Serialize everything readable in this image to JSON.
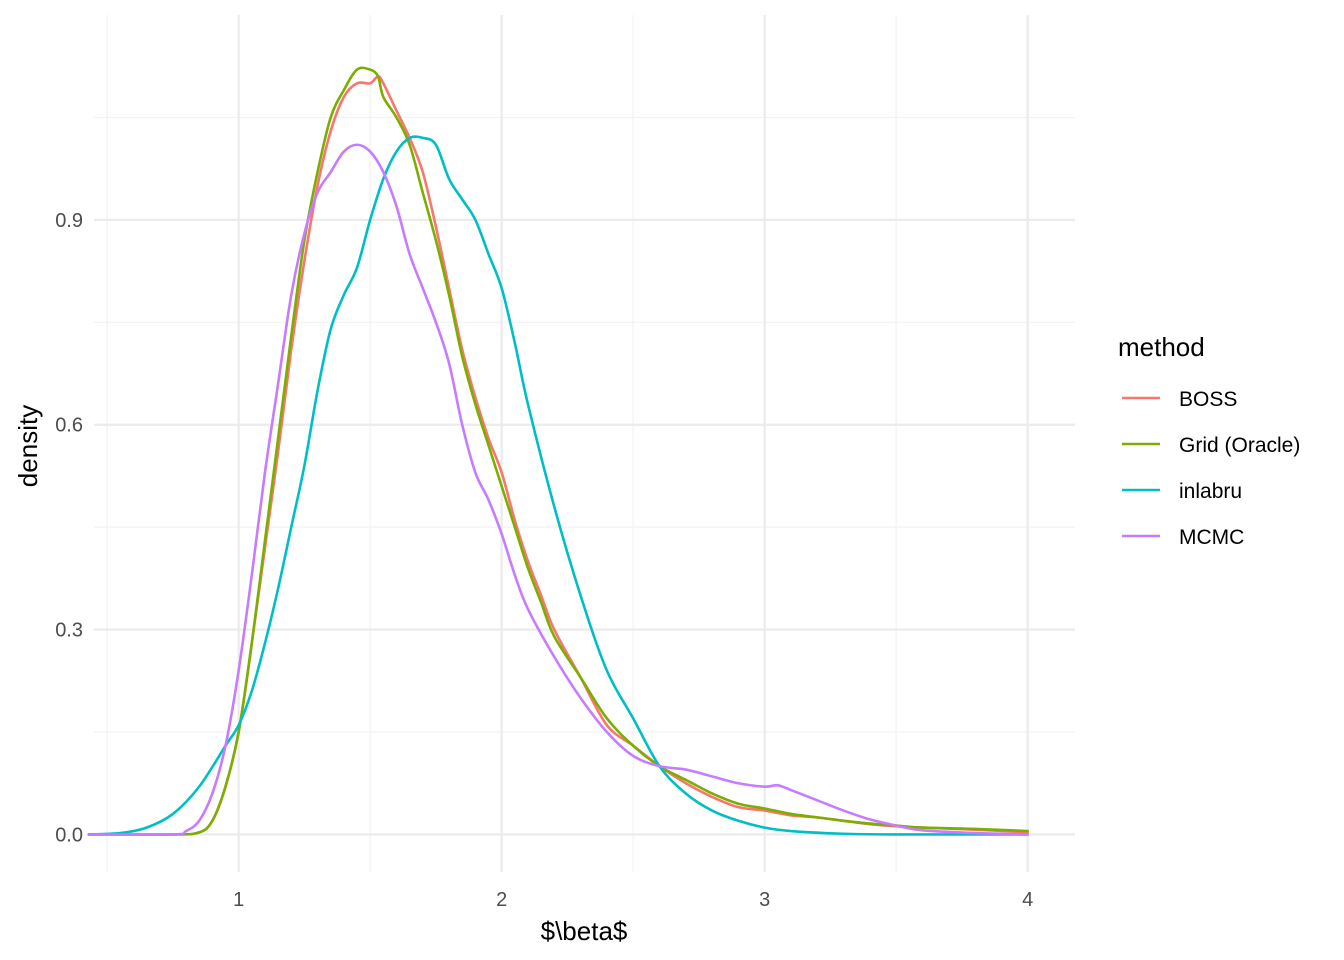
{
  "chart_data": {
    "type": "line",
    "title": "",
    "xlabel": "$\\beta$",
    "ylabel": "density",
    "xlim": [
      0.45,
      4.18
    ],
    "ylim": [
      -0.055,
      1.2
    ],
    "x_ticks": [
      1,
      2,
      3,
      4
    ],
    "x_tick_labels": [
      "1",
      "2",
      "3",
      "4"
    ],
    "x_minor_ticks": [
      0.5,
      1.5,
      2.5,
      3.5
    ],
    "y_ticks": [
      0.0,
      0.3,
      0.6,
      0.9
    ],
    "y_tick_labels": [
      "0.0",
      "0.3",
      "0.6",
      "0.9"
    ],
    "y_minor_ticks": [
      0.15,
      0.45,
      0.75,
      1.05
    ],
    "grid": true,
    "legend": {
      "title": "method",
      "position": "right"
    },
    "series": [
      {
        "name": "BOSS",
        "color": "#F8766D",
        "x": [
          0.43,
          0.75,
          0.85,
          0.9,
          0.95,
          1.0,
          1.05,
          1.1,
          1.15,
          1.2,
          1.25,
          1.3,
          1.35,
          1.4,
          1.45,
          1.5,
          1.53,
          1.55,
          1.6,
          1.65,
          1.7,
          1.75,
          1.8,
          1.85,
          1.9,
          1.95,
          2.0,
          2.05,
          2.1,
          2.15,
          2.2,
          2.3,
          2.4,
          2.5,
          2.6,
          2.7,
          2.8,
          2.9,
          3.0,
          3.1,
          3.2,
          3.3,
          3.4,
          3.5,
          3.6,
          3.8,
          4.0
        ],
        "y": [
          0.0,
          0.0,
          0.003,
          0.02,
          0.07,
          0.15,
          0.28,
          0.42,
          0.56,
          0.71,
          0.84,
          0.95,
          1.03,
          1.08,
          1.1,
          1.1,
          1.11,
          1.1,
          1.06,
          1.02,
          0.97,
          0.89,
          0.8,
          0.71,
          0.64,
          0.58,
          0.53,
          0.46,
          0.4,
          0.35,
          0.3,
          0.23,
          0.16,
          0.13,
          0.1,
          0.075,
          0.055,
          0.04,
          0.035,
          0.028,
          0.025,
          0.02,
          0.015,
          0.012,
          0.01,
          0.007,
          0.003
        ]
      },
      {
        "name": "Grid (Oracle)",
        "color": "#7CAE00",
        "x": [
          0.43,
          0.75,
          0.85,
          0.9,
          0.95,
          1.0,
          1.05,
          1.1,
          1.15,
          1.2,
          1.25,
          1.3,
          1.35,
          1.4,
          1.45,
          1.5,
          1.53,
          1.55,
          1.6,
          1.65,
          1.7,
          1.75,
          1.8,
          1.85,
          1.9,
          1.95,
          2.0,
          2.05,
          2.1,
          2.15,
          2.2,
          2.3,
          2.4,
          2.5,
          2.6,
          2.7,
          2.8,
          2.9,
          3.0,
          3.1,
          3.2,
          3.3,
          3.4,
          3.5,
          3.6,
          3.8,
          4.0
        ],
        "y": [
          0.0,
          0.0,
          0.003,
          0.02,
          0.07,
          0.15,
          0.28,
          0.43,
          0.58,
          0.73,
          0.87,
          0.97,
          1.05,
          1.09,
          1.12,
          1.12,
          1.11,
          1.08,
          1.05,
          1.01,
          0.94,
          0.87,
          0.79,
          0.7,
          0.63,
          0.57,
          0.51,
          0.45,
          0.39,
          0.34,
          0.29,
          0.23,
          0.17,
          0.13,
          0.1,
          0.08,
          0.06,
          0.045,
          0.038,
          0.03,
          0.025,
          0.02,
          0.016,
          0.013,
          0.01,
          0.008,
          0.005
        ]
      },
      {
        "name": "inlabru",
        "color": "#00BFC4",
        "x": [
          0.43,
          0.55,
          0.65,
          0.75,
          0.85,
          0.95,
          1.0,
          1.05,
          1.1,
          1.15,
          1.2,
          1.25,
          1.3,
          1.35,
          1.4,
          1.45,
          1.5,
          1.55,
          1.6,
          1.65,
          1.7,
          1.75,
          1.8,
          1.85,
          1.9,
          1.95,
          2.0,
          2.05,
          2.1,
          2.2,
          2.3,
          2.4,
          2.5,
          2.6,
          2.7,
          2.8,
          2.9,
          3.0,
          3.1,
          3.3,
          3.5,
          3.8,
          4.0
        ],
        "y": [
          0.0,
          0.002,
          0.01,
          0.03,
          0.07,
          0.13,
          0.16,
          0.21,
          0.28,
          0.36,
          0.45,
          0.54,
          0.65,
          0.74,
          0.79,
          0.83,
          0.9,
          0.96,
          1.0,
          1.02,
          1.02,
          1.01,
          0.96,
          0.93,
          0.9,
          0.85,
          0.8,
          0.72,
          0.63,
          0.48,
          0.35,
          0.24,
          0.17,
          0.1,
          0.06,
          0.035,
          0.02,
          0.01,
          0.005,
          0.001,
          0.0,
          0.0,
          0.0
        ]
      },
      {
        "name": "MCMC",
        "color": "#C77CFF",
        "x": [
          0.43,
          0.75,
          0.8,
          0.85,
          0.9,
          0.95,
          1.0,
          1.05,
          1.1,
          1.15,
          1.2,
          1.25,
          1.3,
          1.35,
          1.4,
          1.45,
          1.5,
          1.55,
          1.6,
          1.65,
          1.7,
          1.75,
          1.8,
          1.85,
          1.9,
          1.95,
          2.0,
          2.05,
          2.1,
          2.2,
          2.3,
          2.4,
          2.5,
          2.6,
          2.7,
          2.8,
          2.9,
          3.0,
          3.05,
          3.1,
          3.2,
          3.3,
          3.4,
          3.5,
          3.6,
          3.8,
          4.0
        ],
        "y": [
          0.0,
          0.0,
          0.005,
          0.02,
          0.06,
          0.13,
          0.24,
          0.38,
          0.53,
          0.66,
          0.79,
          0.88,
          0.94,
          0.97,
          1.0,
          1.01,
          1.0,
          0.97,
          0.92,
          0.85,
          0.8,
          0.75,
          0.69,
          0.6,
          0.53,
          0.49,
          0.44,
          0.38,
          0.33,
          0.26,
          0.2,
          0.15,
          0.115,
          0.1,
          0.095,
          0.085,
          0.075,
          0.07,
          0.072,
          0.065,
          0.05,
          0.035,
          0.022,
          0.013,
          0.006,
          0.002,
          0.0
        ]
      }
    ]
  }
}
